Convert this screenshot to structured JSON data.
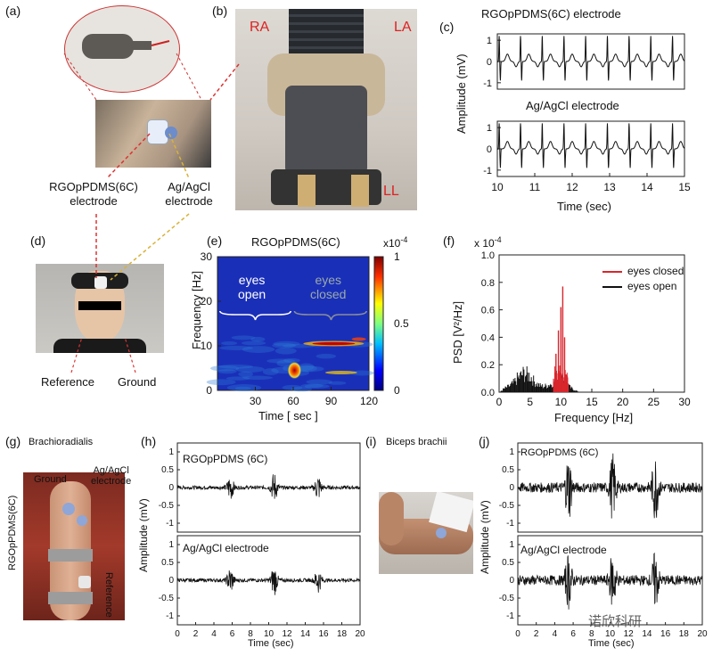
{
  "panels": {
    "a": "(a)",
    "b": "(b)",
    "c": "(c)",
    "d": "(d)",
    "e": "(e)",
    "f": "(f)",
    "g": "(g)",
    "h": "(h)",
    "i": "(i)",
    "j": "(j)"
  },
  "a": {
    "rgo_label": "RGOpPDMS(6C)",
    "rgo_label2": "electrode",
    "agcl_label": "Ag/AgCl",
    "agcl_label2": "electrode"
  },
  "b": {
    "ra": "RA",
    "la": "LA",
    "ll": "LL"
  },
  "c": {
    "title_top": "RGOpPDMS(6C) electrode",
    "title_bottom": "Ag/AgCl electrode",
    "ylabel": "Amplitude (mV)",
    "xlabel": "Time (sec)",
    "xticks": [
      "10",
      "11",
      "12",
      "13",
      "14",
      "15"
    ],
    "yticks": [
      "1",
      "0",
      "-1"
    ]
  },
  "d": {
    "reference": "Reference",
    "ground": "Ground"
  },
  "e": {
    "title": "RGOpPDMS(6C)",
    "scale": "x10",
    "scale_exp": "-4",
    "ylabel": "Frequency [Hz]",
    "xlabel": "Time [ sec ]",
    "xticks": [
      "30",
      "60",
      "90",
      "120"
    ],
    "yticks": [
      "30",
      "20",
      "10",
      "0"
    ],
    "cbar_ticks": [
      "1",
      "0.5",
      "0"
    ],
    "eyes_open_1": "eyes",
    "eyes_open_2": "open",
    "eyes_closed_1": "eyes",
    "eyes_closed_2": "closed"
  },
  "f": {
    "scale": "x 10",
    "scale_exp": "-4",
    "ylabel": "PSD [V²/Hz]",
    "xlabel": "Frequency [Hz]",
    "xticks": [
      "0",
      "5",
      "10",
      "15",
      "20",
      "25",
      "30"
    ],
    "yticks": [
      "1.0",
      "0.8",
      "0.6",
      "0.4",
      "0.2",
      "0.0"
    ],
    "legend": [
      "eyes closed",
      "eyes open"
    ],
    "colors": {
      "closed": "#d8262d",
      "open": "#111111"
    }
  },
  "g": {
    "title": "Brachioradialis",
    "ground": "Ground",
    "agcl": "Ag/AgCl",
    "agcl2": "electrode",
    "rgo": "RGOpPDMS(6C)",
    "reference": "Reference"
  },
  "h": {
    "title_top": "RGOpPDMS (6C)",
    "title_bottom": "Ag/AgCl electrode",
    "ylabel": "Amplitude (mV)",
    "xlabel": "Time (sec)",
    "xticks": [
      "0",
      "2",
      "4",
      "6",
      "8",
      "10",
      "12",
      "14",
      "16",
      "18",
      "20"
    ],
    "yticks": [
      "1",
      "0.5",
      "0",
      "-0.5",
      "-1"
    ]
  },
  "i": {
    "title": "Biceps brachii"
  },
  "j": {
    "title_top": "RGOpPDMS (6C)",
    "title_bottom": "Ag/AgCl electrode",
    "ylabel": "Amplitude (mV)",
    "xlabel": "Time (sec)",
    "xticks": [
      "0",
      "2",
      "4",
      "6",
      "8",
      "10",
      "12",
      "14",
      "16",
      "18",
      "20"
    ],
    "yticks": [
      "1",
      "0.5",
      "0",
      "-0.5",
      "-1"
    ]
  },
  "watermark": "诺欣科研",
  "chart_data": [
    {
      "id": "c-top",
      "type": "line",
      "title": "RGOpPDMS(6C) electrode",
      "ylabel": "Amplitude (mV)",
      "xlim": [
        10,
        15
      ],
      "ylim": [
        -1.3,
        1.3
      ],
      "beats_x": [
        10.05,
        10.62,
        11.2,
        11.78,
        12.36,
        12.94,
        13.52,
        14.1,
        14.68
      ]
    },
    {
      "id": "c-bottom",
      "type": "line",
      "title": "Ag/AgCl electrode",
      "ylabel": "Amplitude (mV)",
      "xlabel": "Time (sec)",
      "xlim": [
        10,
        15
      ],
      "ylim": [
        -1.3,
        1.3
      ],
      "beats_x": [
        10.05,
        10.62,
        11.2,
        11.78,
        12.36,
        12.94,
        13.52,
        14.1,
        14.68
      ]
    },
    {
      "id": "e",
      "type": "heatmap",
      "title": "RGOpPDMS(6C)",
      "xlabel": "Time [ sec ]",
      "ylabel": "Frequency [Hz]",
      "xlim": [
        0,
        120
      ],
      "ylim": [
        0,
        30
      ],
      "clim": [
        0,
        1
      ]
    },
    {
      "id": "f",
      "type": "bar",
      "xlabel": "Frequency [Hz]",
      "ylabel": "PSD [V²/Hz]",
      "xlim": [
        0,
        30
      ],
      "ylim": [
        0,
        1.0
      ],
      "series": [
        {
          "name": "eyes closed",
          "points": [
            [
              9.2,
              0.28
            ],
            [
              9.6,
              0.45
            ],
            [
              10.0,
              0.62
            ],
            [
              10.3,
              0.77
            ],
            [
              10.6,
              0.4
            ],
            [
              11.0,
              0.12
            ]
          ]
        },
        {
          "name": "eyes open",
          "points": [
            [
              1,
              0.03
            ],
            [
              2,
              0.05
            ],
            [
              3,
              0.1
            ],
            [
              4,
              0.14
            ],
            [
              5,
              0.12
            ],
            [
              6,
              0.06
            ],
            [
              7,
              0.04
            ],
            [
              8,
              0.05
            ],
            [
              9,
              0.08
            ],
            [
              10,
              0.1
            ],
            [
              11,
              0.05
            ],
            [
              12,
              0.02
            ]
          ]
        }
      ]
    },
    {
      "id": "h-top",
      "type": "line",
      "title": "RGOpPDMS (6C)",
      "xlim": [
        0,
        20
      ],
      "ylim": [
        -1.25,
        1.25
      ],
      "bursts": [
        [
          5.8,
          0.35
        ],
        [
          10.6,
          0.4
        ],
        [
          15.4,
          0.35
        ]
      ]
    },
    {
      "id": "h-bottom",
      "type": "line",
      "title": "Ag/AgCl electrode",
      "xlabel": "Time (sec)",
      "xlim": [
        0,
        20
      ],
      "ylim": [
        -1.25,
        1.25
      ],
      "bursts": [
        [
          5.8,
          0.35
        ],
        [
          10.6,
          0.4
        ],
        [
          15.4,
          0.35
        ]
      ]
    },
    {
      "id": "j-top",
      "type": "line",
      "title": "RGOpPDMS (6C)",
      "xlim": [
        0,
        20
      ],
      "ylim": [
        -1.25,
        1.25
      ],
      "bursts": [
        [
          5.5,
          0.9
        ],
        [
          10.3,
          0.85
        ],
        [
          14.9,
          0.9
        ]
      ]
    },
    {
      "id": "j-bottom",
      "type": "line",
      "title": "Ag/AgCl electrode",
      "xlabel": "Time (sec)",
      "xlim": [
        0,
        20
      ],
      "ylim": [
        -1.25,
        1.25
      ],
      "bursts": [
        [
          5.5,
          0.7
        ],
        [
          10.3,
          0.8
        ],
        [
          14.9,
          0.75
        ]
      ]
    }
  ]
}
